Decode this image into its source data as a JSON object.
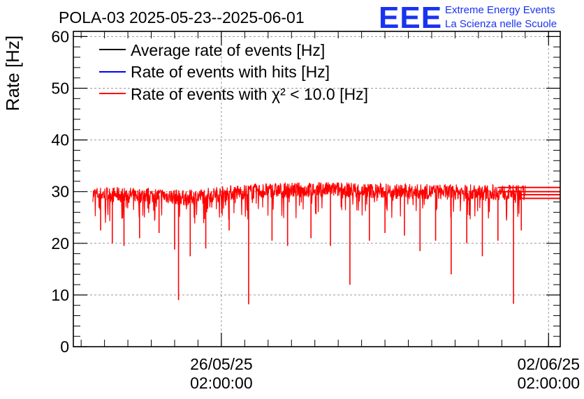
{
  "header": {
    "title": "POLA-03 2025-05-23--2025-06-01",
    "logo_text": "EEE",
    "logo_line1": "Extreme Energy Events",
    "logo_line2": "La Scienza nelle Scuole"
  },
  "colors": {
    "average": "#000000",
    "hits": "#0000ff",
    "chi2": "#ff0000",
    "logo": "#1a33f0",
    "grid": "#999999"
  },
  "chart_data": {
    "type": "line",
    "title": "POLA-03 2025-05-23--2025-06-01",
    "xlabel": "",
    "ylabel": "Rate [Hz]",
    "ylim": [
      0,
      61
    ],
    "yticks": [
      "0",
      "10",
      "20",
      "30",
      "40",
      "50",
      "60"
    ],
    "xlim": [
      "2025-05-22T22:00:00",
      "2025-06-02T08:00:00"
    ],
    "xticks": [
      {
        "date": "26/05/25",
        "time": "02:00:00",
        "at": "2025-05-26T02:00:00"
      },
      {
        "date": "02/06/25",
        "time": "02:00:00",
        "at": "2025-06-02T02:00:00"
      }
    ],
    "grid": true,
    "legend_position": "top-left",
    "series": [
      {
        "name": "Average rate of events [Hz]",
        "color": "#000000",
        "typical_range": [
          28,
          30
        ]
      },
      {
        "name": "Rate of events with hits [Hz]",
        "color": "#0000ff",
        "typical_range": [
          28,
          31
        ]
      },
      {
        "name": "Rate of events with χ² < 10.0 [Hz]",
        "color": "#ff0000",
        "start": "2025-05-23T08:00:00",
        "end": "2025-06-01T14:00:00",
        "baseline": [
          [
            "2025-05-23T08:00:00",
            29.5
          ],
          [
            "2025-05-24T20:00:00",
            29.2
          ],
          [
            "2025-05-25T08:00:00",
            28.8
          ],
          [
            "2025-05-26T02:00:00",
            29.6
          ],
          [
            "2025-05-27T00:00:00",
            30.2
          ],
          [
            "2025-05-28T12:00:00",
            30.4
          ],
          [
            "2025-05-30T00:00:00",
            30.0
          ],
          [
            "2025-06-01T14:00:00",
            29.8
          ]
        ],
        "dips": [
          [
            "2025-05-23T12:00:00",
            22.5
          ],
          [
            "2025-05-23T18:00:00",
            20.0
          ],
          [
            "2025-05-24T00:00:00",
            19.5
          ],
          [
            "2025-05-24T08:00:00",
            21.0
          ],
          [
            "2025-05-24T18:00:00",
            22.0
          ],
          [
            "2025-05-25T02:00:00",
            18.8
          ],
          [
            "2025-05-25T04:00:00",
            9.0
          ],
          [
            "2025-05-25T10:00:00",
            17.5
          ],
          [
            "2025-05-25T18:00:00",
            19.0
          ],
          [
            "2025-05-26T06:00:00",
            22.5
          ],
          [
            "2025-05-26T16:00:00",
            8.2
          ],
          [
            "2025-05-27T04:00:00",
            20.5
          ],
          [
            "2025-05-27T12:00:00",
            19.5
          ],
          [
            "2025-05-28T00:00:00",
            21.0
          ],
          [
            "2025-05-28T10:00:00",
            19.5
          ],
          [
            "2025-05-28T20:00:00",
            12.0
          ],
          [
            "2025-05-29T06:00:00",
            20.5
          ],
          [
            "2025-05-29T14:00:00",
            22.0
          ],
          [
            "2025-05-30T00:00:00",
            21.5
          ],
          [
            "2025-05-30T08:00:00",
            18.5
          ],
          [
            "2025-05-30T16:00:00",
            20.5
          ],
          [
            "2025-05-31T00:00:00",
            14.0
          ],
          [
            "2025-05-31T08:00:00",
            20.0
          ],
          [
            "2025-05-31T16:00:00",
            17.5
          ],
          [
            "2025-06-01T00:00:00",
            20.5
          ],
          [
            "2025-06-01T08:00:00",
            8.3
          ],
          [
            "2025-06-01T12:00:00",
            22.5
          ]
        ]
      }
    ],
    "tail_lines": [
      {
        "color": "#ff0000",
        "y": 30.8,
        "from": "2025-06-01T00:00:00"
      },
      {
        "color": "#ff0000",
        "y": 30.0,
        "from": "2025-06-01T00:00:00"
      },
      {
        "color": "#ff0000",
        "y": 29.4,
        "from": "2025-06-01T10:00:00"
      },
      {
        "color": "#ff0000",
        "y": 28.7,
        "from": "2025-06-01T10:00:00"
      }
    ]
  }
}
